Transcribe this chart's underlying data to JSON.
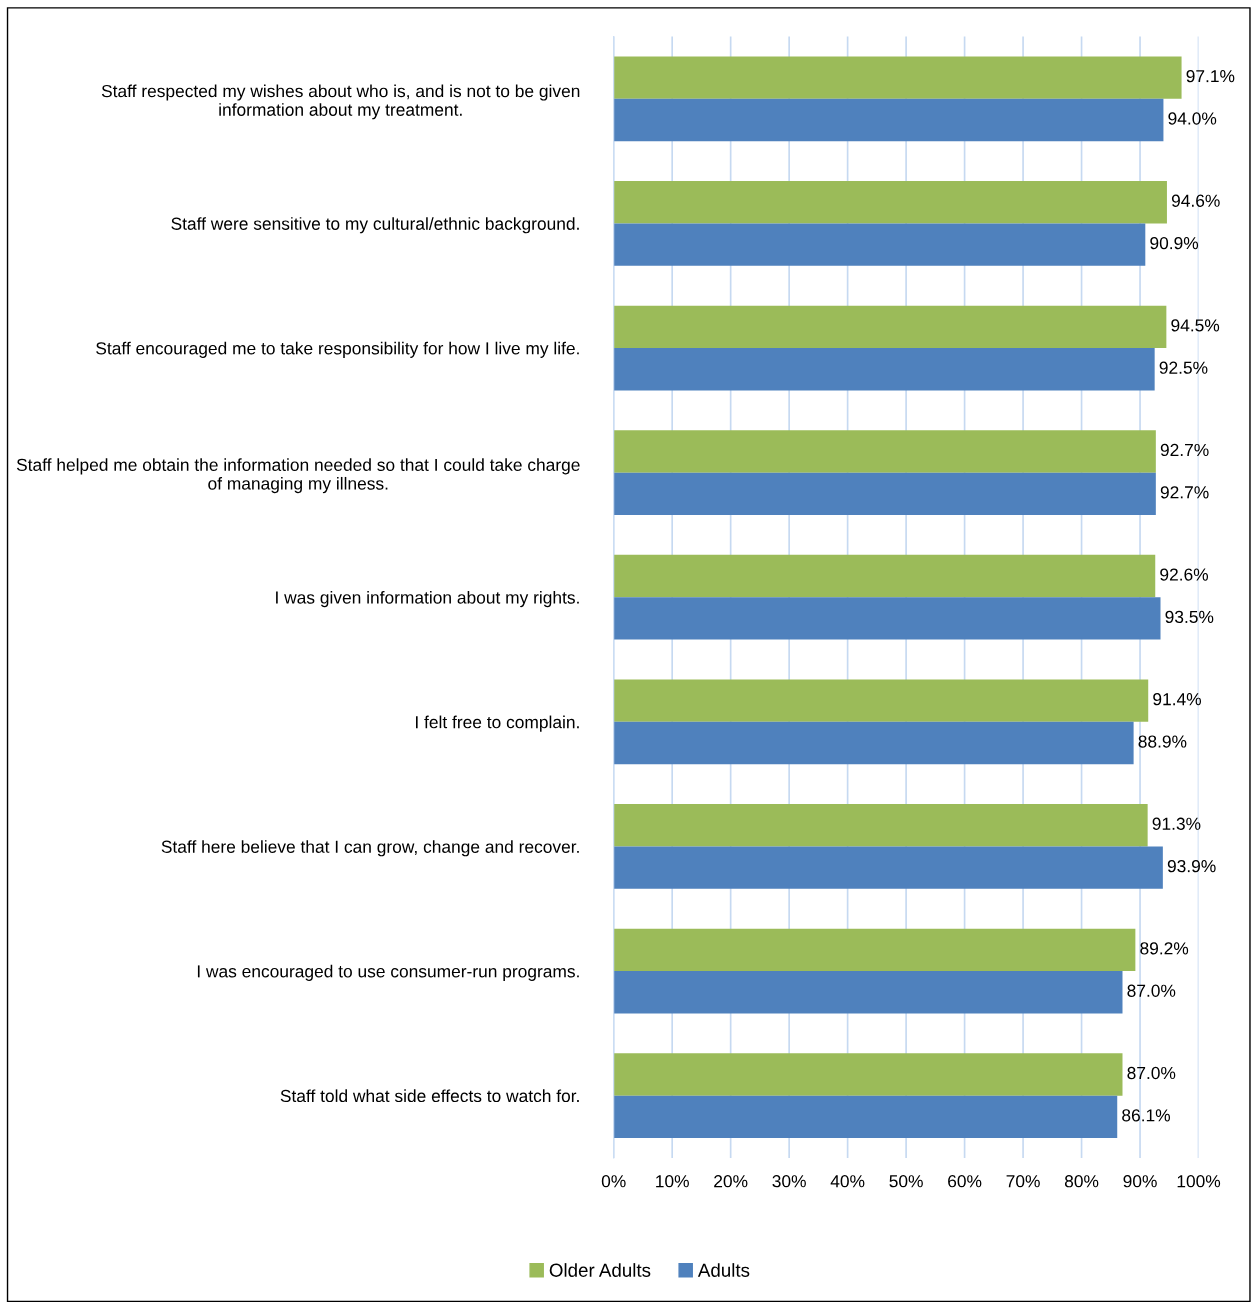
{
  "chart_data": {
    "type": "bar",
    "orientation": "horizontal",
    "categories": [
      "Staff respected my wishes about who is, and is not to be given information about my treatment.",
      "Staff were sensitive to my cultural/ethnic background.",
      "Staff encouraged me to take responsibility for how I live my life.",
      "Staff helped me obtain the information needed so that I could take charge of managing my illness.",
      "I was given information about my rights.",
      "I felt free to complain.",
      "Staff here believe that I can grow, change and recover.",
      "I was encouraged to use consumer-run programs.",
      "Staff told what side effects to watch for."
    ],
    "series": [
      {
        "name": "Older Adults",
        "color": "#9bbb59",
        "values": [
          97.1,
          94.6,
          94.5,
          92.7,
          92.6,
          91.4,
          91.3,
          89.2,
          87.0
        ],
        "value_labels": [
          "97.1%",
          "94.6%",
          "94.5%",
          "92.7%",
          "92.6%",
          "91.4%",
          "91.3%",
          "89.2%",
          "87.0%"
        ]
      },
      {
        "name": "Adults",
        "color": "#4f81bd",
        "values": [
          94.0,
          90.9,
          92.5,
          92.7,
          93.5,
          88.9,
          93.9,
          87.0,
          86.1
        ],
        "value_labels": [
          "94.0%",
          "90.9%",
          "92.5%",
          "92.7%",
          "93.5%",
          "88.9%",
          "93.9%",
          "87.0%",
          "86.1%"
        ]
      }
    ],
    "xlim": [
      0,
      100
    ],
    "xticks": [
      {
        "value": 0,
        "label": "0%"
      },
      {
        "value": 10,
        "label": "10%"
      },
      {
        "value": 20,
        "label": "20%"
      },
      {
        "value": 30,
        "label": "30%"
      },
      {
        "value": 40,
        "label": "40%"
      },
      {
        "value": 50,
        "label": "50%"
      },
      {
        "value": 60,
        "label": "60%"
      },
      {
        "value": 70,
        "label": "70%"
      },
      {
        "value": 80,
        "label": "80%"
      },
      {
        "value": 90,
        "label": "90%"
      },
      {
        "value": 100,
        "label": "100%"
      }
    ],
    "grid": "x",
    "legend": "bottom"
  }
}
